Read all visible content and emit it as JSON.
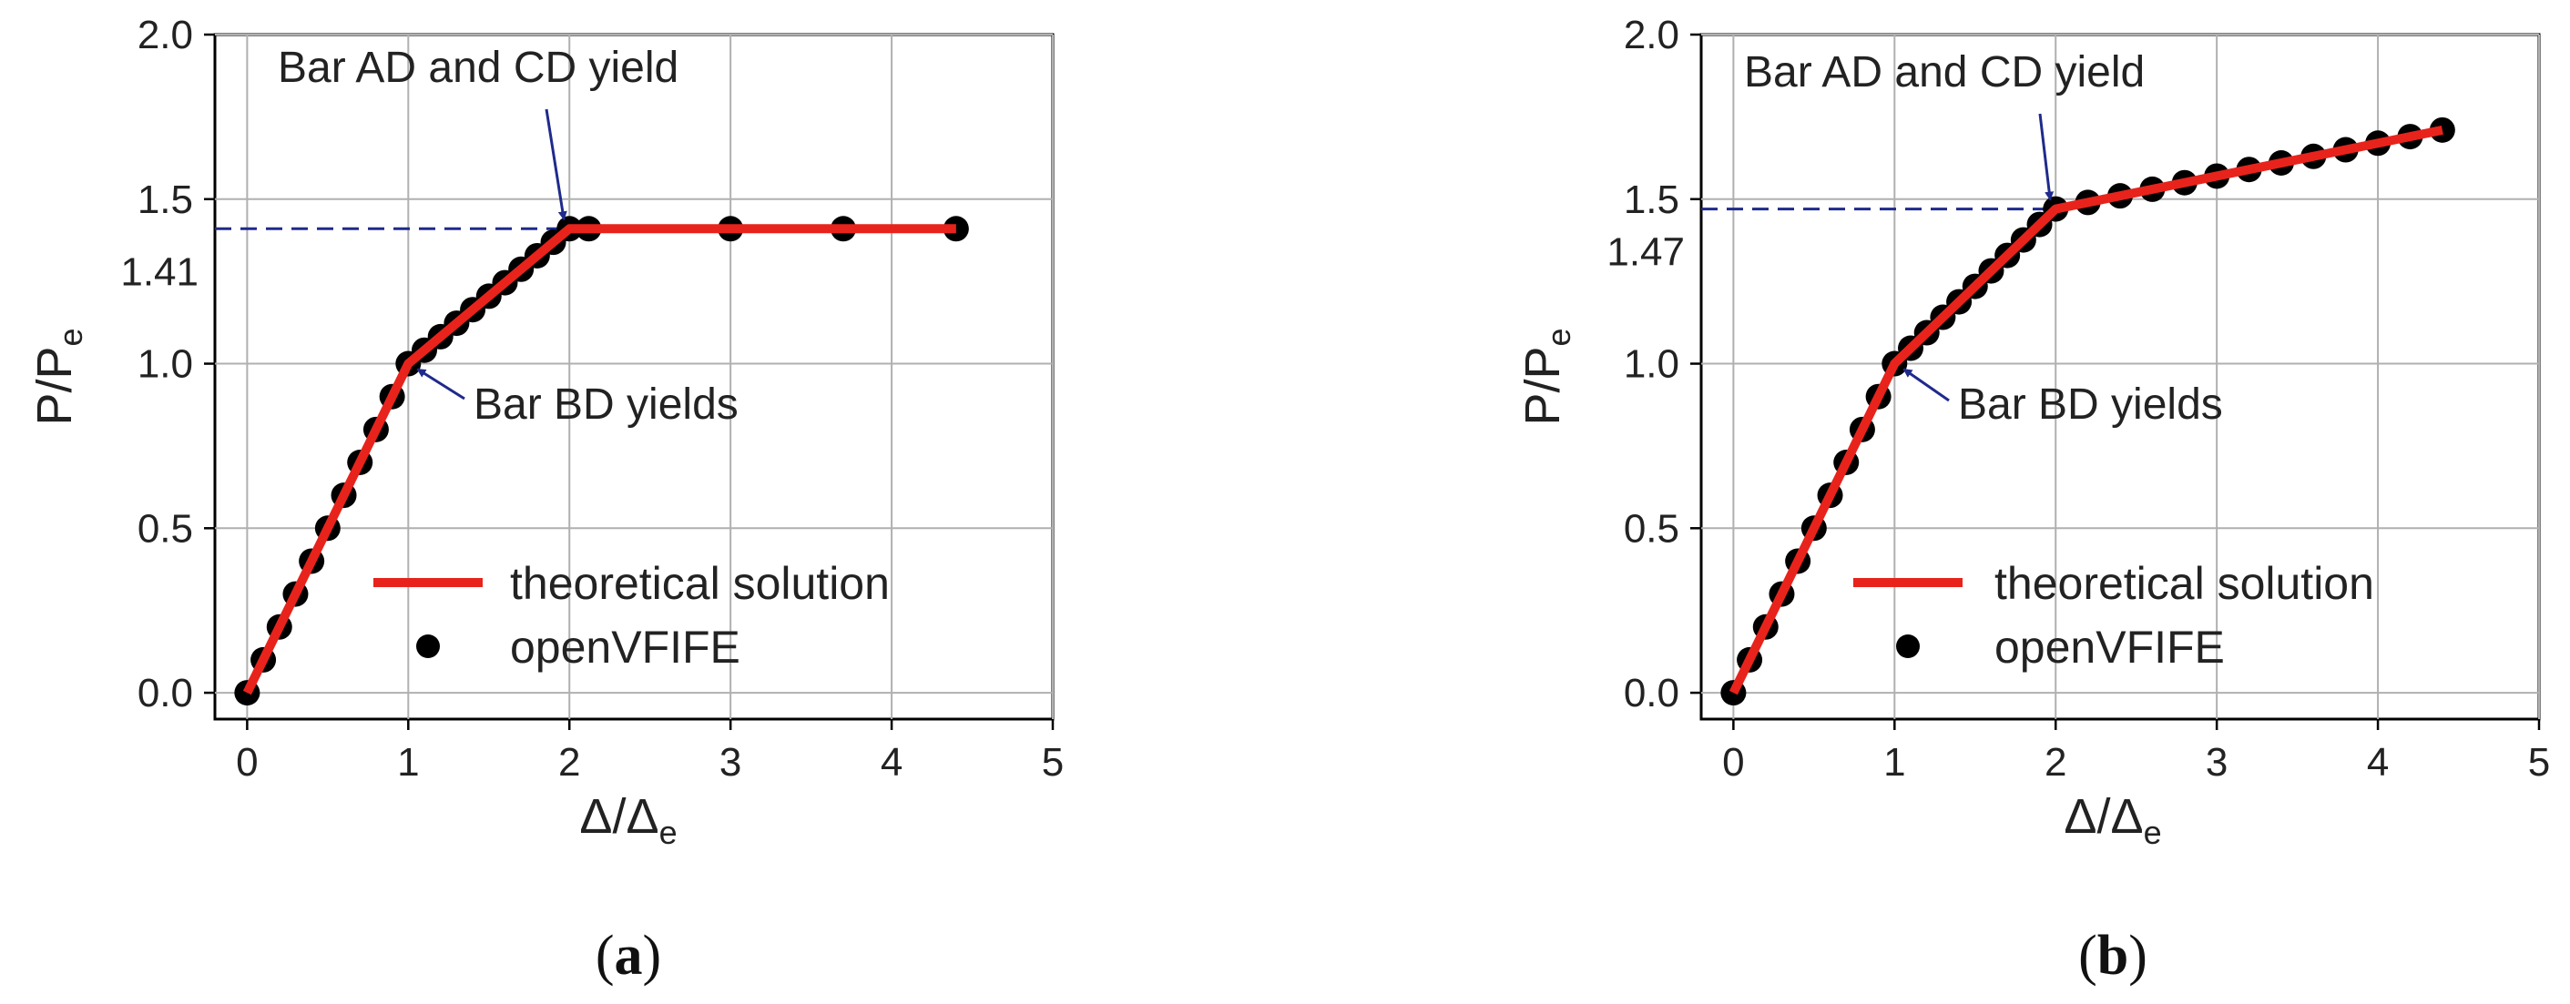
{
  "chart_data": [
    {
      "type": "line",
      "panel_caption": "a",
      "ylabel_main": "P/P",
      "ylabel_sub": "e",
      "xlabel_main": "Δ/Δ",
      "xlabel_sub": "e",
      "xlim": [
        -0.2,
        5
      ],
      "ylim": [
        -0.08,
        2.0
      ],
      "xticks": [
        "0",
        "1",
        "2",
        "3",
        "4",
        "5"
      ],
      "yticks": [
        "0.0",
        "0.5",
        "1.0",
        "1.5",
        "2.0"
      ],
      "grid": true,
      "legend_position": "lower-right",
      "series": [
        {
          "name": "theoretical solution",
          "color": "#e8231c",
          "x": [
            0,
            1,
            2,
            4.4
          ],
          "y": [
            0,
            1.0,
            1.41,
            1.41
          ]
        },
        {
          "name": "openVFIFE",
          "color": "#000000",
          "x": [
            0,
            0.1,
            0.2,
            0.3,
            0.4,
            0.5,
            0.6,
            0.7,
            0.8,
            0.9,
            1.0,
            1.1,
            1.2,
            1.3,
            1.4,
            1.5,
            1.6,
            1.7,
            1.8,
            1.9,
            2.0,
            2.12,
            3.0,
            3.7,
            4.4
          ],
          "y": [
            0,
            0.1,
            0.2,
            0.3,
            0.4,
            0.5,
            0.6,
            0.7,
            0.8,
            0.9,
            1.0,
            1.041,
            1.082,
            1.123,
            1.164,
            1.205,
            1.246,
            1.287,
            1.328,
            1.369,
            1.41,
            1.41,
            1.41,
            1.41,
            1.41
          ]
        }
      ],
      "reference_line": {
        "y": 1.41,
        "label": "1.41",
        "color": "#1f2a8c"
      },
      "annotations": [
        {
          "text": "Bar AD and CD yield",
          "points_to": [
            2.0,
            1.41
          ]
        },
        {
          "text": "Bar BD yields",
          "points_to": [
            1.0,
            1.0
          ]
        }
      ]
    },
    {
      "type": "line",
      "panel_caption": "b",
      "ylabel_main": "P/P",
      "ylabel_sub": "e",
      "xlabel_main": "Δ/Δ",
      "xlabel_sub": "e",
      "xlim": [
        -0.2,
        5
      ],
      "ylim": [
        -0.08,
        2.0
      ],
      "xticks": [
        "0",
        "1",
        "2",
        "3",
        "4",
        "5"
      ],
      "yticks": [
        "0.0",
        "0.5",
        "1.0",
        "1.5",
        "2.0"
      ],
      "grid": true,
      "legend_position": "lower-right",
      "series": [
        {
          "name": "theoretical solution",
          "color": "#e8231c",
          "x": [
            0,
            1,
            2,
            4.4
          ],
          "y": [
            0,
            1.0,
            1.47,
            1.71
          ]
        },
        {
          "name": "openVFIFE",
          "color": "#000000",
          "x": [
            0,
            0.1,
            0.2,
            0.3,
            0.4,
            0.5,
            0.6,
            0.7,
            0.8,
            0.9,
            1.0,
            1.1,
            1.2,
            1.3,
            1.4,
            1.5,
            1.6,
            1.7,
            1.8,
            1.9,
            2.0,
            2.2,
            2.4,
            2.6,
            2.8,
            3.0,
            3.2,
            3.4,
            3.6,
            3.8,
            4.0,
            4.2,
            4.4
          ],
          "y": [
            0,
            0.1,
            0.2,
            0.3,
            0.4,
            0.5,
            0.6,
            0.7,
            0.8,
            0.9,
            1.0,
            1.047,
            1.094,
            1.141,
            1.188,
            1.235,
            1.282,
            1.329,
            1.376,
            1.423,
            1.47,
            1.49,
            1.51,
            1.53,
            1.55,
            1.57,
            1.59,
            1.61,
            1.63,
            1.65,
            1.67,
            1.69,
            1.71
          ]
        }
      ],
      "reference_line": {
        "y": 1.47,
        "label": "1.47",
        "color": "#1f2a8c"
      },
      "annotations": [
        {
          "text": "Bar AD and CD yield",
          "points_to": [
            2.0,
            1.47
          ]
        },
        {
          "text": "Bar BD yields",
          "points_to": [
            1.0,
            1.0
          ]
        }
      ]
    }
  ]
}
